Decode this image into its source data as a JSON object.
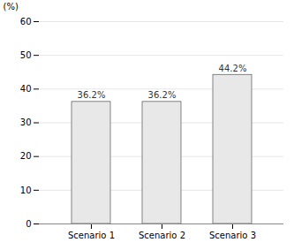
{
  "chart_data": {
    "type": "bar",
    "categories": [
      "Scenario 1",
      "Scenario 2",
      "Scenario 3"
    ],
    "values": [
      36.2,
      36.2,
      44.2
    ],
    "value_labels": [
      "36.2%",
      "36.2%",
      "44.2%"
    ],
    "data_labels": true,
    "color": "#e8e8e8",
    "ylabel": "(%)",
    "ylim": [
      0,
      60
    ],
    "yticks": [
      0,
      10,
      20,
      30,
      40,
      50,
      60
    ],
    "grid": true
  }
}
